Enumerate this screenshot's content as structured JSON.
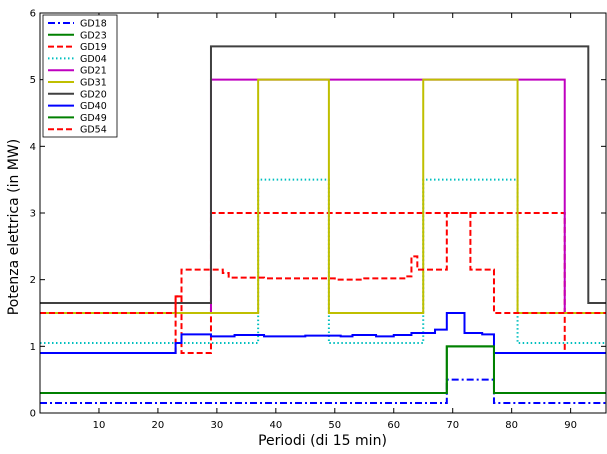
{
  "chart_data": {
    "type": "line",
    "step": true,
    "xlabel": "Periodi (di 15 min)",
    "ylabel": "Potenza elettrica (in MW)",
    "xlim": [
      0,
      96
    ],
    "ylim": [
      0,
      6
    ],
    "xticks": [
      10,
      20,
      30,
      40,
      50,
      60,
      70,
      80,
      90
    ],
    "yticks": [
      0,
      1,
      2,
      3,
      4,
      5,
      6
    ],
    "grid": false,
    "legend_position": "top-left",
    "series": [
      {
        "name": "GD18",
        "color": "#0000ff",
        "dash": "dashdot",
        "points": [
          [
            0,
            0.15
          ],
          [
            69,
            0.15
          ],
          [
            69,
            0.5
          ],
          [
            77,
            0.5
          ],
          [
            77,
            0.15
          ],
          [
            96,
            0.15
          ]
        ]
      },
      {
        "name": "GD23",
        "color": "#008000",
        "dash": "solid",
        "points": [
          [
            0,
            0.3
          ],
          [
            69,
            0.3
          ],
          [
            69,
            1.0
          ],
          [
            77,
            1.0
          ],
          [
            77,
            0.3
          ],
          [
            96,
            0.3
          ]
        ]
      },
      {
        "name": "GD19",
        "color": "#ff0000",
        "dash": "dashed",
        "points": [
          [
            0,
            0.9
          ],
          [
            23,
            0.9
          ],
          [
            23,
            1.75
          ],
          [
            24,
            1.75
          ],
          [
            24,
            0.9
          ],
          [
            29,
            0.9
          ],
          [
            29,
            3.0
          ],
          [
            89,
            3.0
          ],
          [
            89,
            0.9
          ],
          [
            96,
            0.9
          ]
        ]
      },
      {
        "name": "GD04",
        "color": "#00bfbf",
        "dash": "dotted",
        "points": [
          [
            0,
            1.05
          ],
          [
            37,
            1.05
          ],
          [
            37,
            3.5
          ],
          [
            49,
            3.5
          ],
          [
            49,
            1.05
          ],
          [
            65,
            1.05
          ],
          [
            65,
            3.5
          ],
          [
            81,
            3.5
          ],
          [
            81,
            1.05
          ],
          [
            96,
            1.05
          ]
        ]
      },
      {
        "name": "GD21",
        "color": "#bf00bf",
        "dash": "solid",
        "points": [
          [
            0,
            1.5
          ],
          [
            29,
            1.5
          ],
          [
            29,
            5.0
          ],
          [
            89,
            5.0
          ],
          [
            89,
            1.5
          ],
          [
            96,
            1.5
          ]
        ]
      },
      {
        "name": "GD31",
        "color": "#bfbf00",
        "dash": "solid",
        "points": [
          [
            0,
            1.5
          ],
          [
            37,
            1.5
          ],
          [
            37,
            5.0
          ],
          [
            49,
            5.0
          ],
          [
            49,
            1.5
          ],
          [
            65,
            1.5
          ],
          [
            65,
            5.0
          ],
          [
            81,
            5.0
          ],
          [
            81,
            1.5
          ],
          [
            96,
            1.5
          ]
        ]
      },
      {
        "name": "GD20",
        "color": "#404040",
        "dash": "solid",
        "points": [
          [
            0,
            1.65
          ],
          [
            29,
            1.65
          ],
          [
            29,
            5.5
          ],
          [
            93,
            5.5
          ],
          [
            93,
            1.65
          ],
          [
            96,
            1.65
          ]
        ]
      },
      {
        "name": "GD40",
        "color": "#0000ff",
        "dash": "solid",
        "points": [
          [
            0,
            0.9
          ],
          [
            23,
            0.9
          ],
          [
            23,
            1.05
          ],
          [
            24,
            1.05
          ],
          [
            24,
            1.18
          ],
          [
            29,
            1.18
          ],
          [
            29,
            1.15
          ],
          [
            33,
            1.15
          ],
          [
            33,
            1.17
          ],
          [
            38,
            1.17
          ],
          [
            38,
            1.15
          ],
          [
            45,
            1.15
          ],
          [
            45,
            1.16
          ],
          [
            51,
            1.16
          ],
          [
            51,
            1.15
          ],
          [
            53,
            1.15
          ],
          [
            53,
            1.17
          ],
          [
            57,
            1.17
          ],
          [
            57,
            1.15
          ],
          [
            60,
            1.15
          ],
          [
            60,
            1.17
          ],
          [
            63,
            1.17
          ],
          [
            63,
            1.2
          ],
          [
            67,
            1.2
          ],
          [
            67,
            1.25
          ],
          [
            69,
            1.25
          ],
          [
            69,
            1.5
          ],
          [
            72,
            1.5
          ],
          [
            72,
            1.2
          ],
          [
            75,
            1.2
          ],
          [
            75,
            1.18
          ],
          [
            77,
            1.18
          ],
          [
            77,
            0.9
          ],
          [
            96,
            0.9
          ]
        ]
      },
      {
        "name": "GD49",
        "color": "#008000",
        "dash": "solid",
        "points": [
          [
            0,
            0.3
          ],
          [
            69,
            0.3
          ],
          [
            69,
            1.0
          ],
          [
            77,
            1.0
          ],
          [
            77,
            0.3
          ],
          [
            96,
            0.3
          ]
        ]
      },
      {
        "name": "GD54",
        "color": "#ff0000",
        "dash": "dashed",
        "points": [
          [
            0,
            1.5
          ],
          [
            23,
            1.5
          ],
          [
            23,
            1.75
          ],
          [
            24,
            1.75
          ],
          [
            24,
            2.15
          ],
          [
            31,
            2.15
          ],
          [
            31,
            2.1
          ],
          [
            32,
            2.1
          ],
          [
            32,
            2.03
          ],
          [
            38,
            2.03
          ],
          [
            38,
            2.02
          ],
          [
            50,
            2.02
          ],
          [
            50,
            2.0
          ],
          [
            55,
            2.0
          ],
          [
            55,
            2.02
          ],
          [
            62,
            2.02
          ],
          [
            62,
            2.05
          ],
          [
            63,
            2.05
          ],
          [
            63,
            2.35
          ],
          [
            64,
            2.35
          ],
          [
            64,
            2.15
          ],
          [
            69,
            2.15
          ],
          [
            69,
            3.0
          ],
          [
            73,
            3.0
          ],
          [
            73,
            2.15
          ],
          [
            77,
            2.15
          ],
          [
            77,
            1.5
          ],
          [
            96,
            1.5
          ]
        ]
      }
    ]
  }
}
